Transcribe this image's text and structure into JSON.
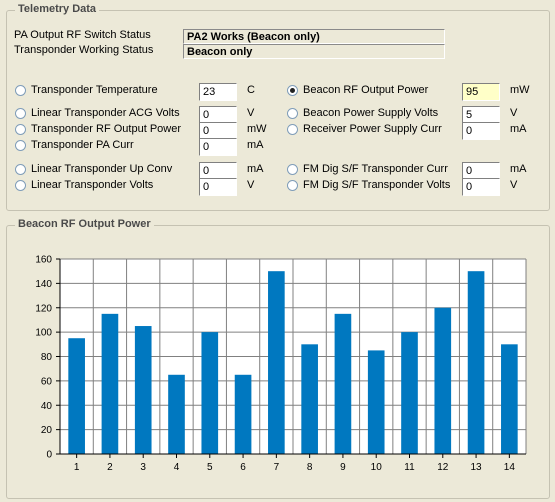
{
  "telemetry": {
    "title": "Telemetry Data",
    "pa_output_label": "PA Output RF Switch Status",
    "pa_output_value": "PA2 Works (Beacon only)",
    "transponder_label": "Transponder Working Status",
    "transponder_value": "Beacon only",
    "left_params": [
      {
        "label": "Transponder Temperature",
        "value": "23",
        "unit": "C",
        "selected": false
      },
      {
        "label": "Linear Transponder ACG Volts",
        "value": "0",
        "unit": "V",
        "selected": false
      },
      {
        "label": "Transponder RF Output Power",
        "value": "0",
        "unit": "mW",
        "selected": false
      },
      {
        "label": "Transponder PA Curr",
        "value": "0",
        "unit": "mA",
        "selected": false
      },
      {
        "label": "Linear Transponder Up Conv",
        "value": "0",
        "unit": "mA",
        "selected": false
      },
      {
        "label": "Linear Transponder Volts",
        "value": "0",
        "unit": "V",
        "selected": false
      }
    ],
    "right_params": [
      {
        "label": "Beacon RF Output Power",
        "value": "95",
        "unit": "mW",
        "selected": true
      },
      {
        "label": "Beacon Power Supply Volts",
        "value": "5",
        "unit": "V",
        "selected": false
      },
      {
        "label": "Receiver Power Supply Curr",
        "value": "0",
        "unit": "mA",
        "selected": false
      },
      {
        "label": "FM Dig S/F Transponder Curr",
        "value": "0",
        "unit": "mA",
        "selected": false
      },
      {
        "label": "FM Dig S/F Transponder Volts",
        "value": "0",
        "unit": "V",
        "selected": false
      }
    ]
  },
  "chart_panel": {
    "title": "Beacon RF Output Power"
  },
  "chart_data": {
    "type": "bar",
    "categories": [
      "1",
      "2",
      "3",
      "4",
      "5",
      "6",
      "7",
      "8",
      "9",
      "10",
      "11",
      "12",
      "13",
      "14"
    ],
    "values": [
      95,
      115,
      105,
      65,
      100,
      65,
      150,
      90,
      115,
      85,
      100,
      120,
      150,
      90
    ],
    "ylim": [
      0,
      160
    ],
    "yticks": [
      "0",
      "20",
      "40",
      "60",
      "80",
      "100",
      "120",
      "140",
      "160"
    ],
    "grid": true,
    "bar_color": "#0078c0"
  },
  "colors": {
    "background": "#ece9d8",
    "highlight_field": "#ffffc8"
  }
}
